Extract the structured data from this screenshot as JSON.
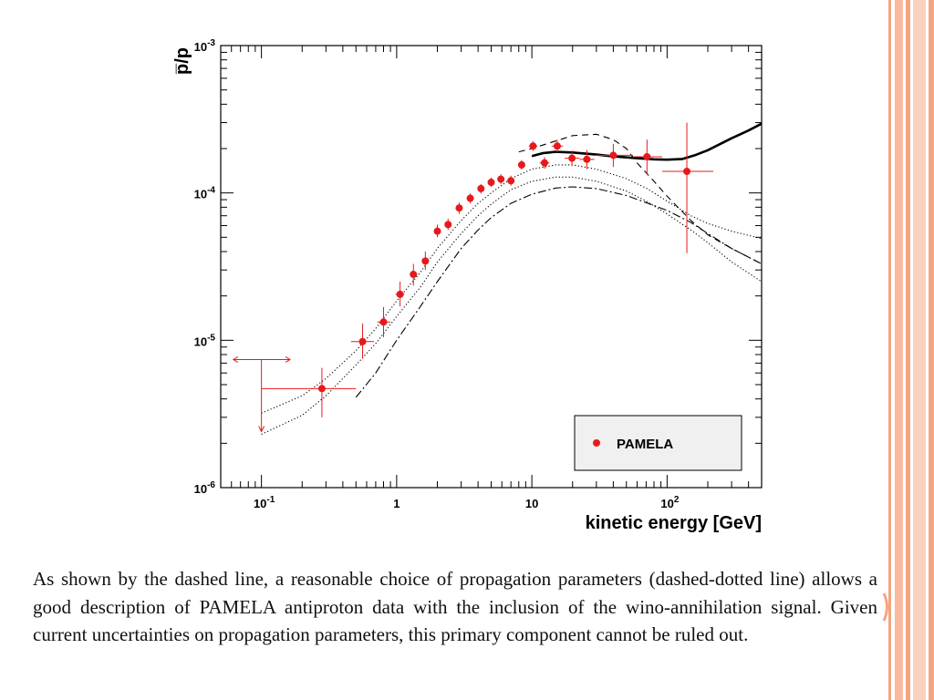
{
  "slide": {
    "caption": "As shown by the dashed line, a reasonable choice of propagation parameters (dashed-dotted line) allows a good description of PAMELA antiproton data with the inclusion of the wino-annihilation signal. Given current uncertainties on propagation parameters, this primary component cannot be ruled out.",
    "accent_color": "#F4A582",
    "decoration_icon": "orange-bracket-icon"
  },
  "chart_data": {
    "type": "scatter",
    "xlabel": "kinetic energy [GeV]",
    "ylabel": "p̅/p",
    "xscale": "log",
    "yscale": "log",
    "xlim": [
      0.05,
      500
    ],
    "ylim": [
      1e-06,
      0.001
    ],
    "x_tick_labels": [
      {
        "value": 0.1,
        "base": "10",
        "exp": "-1"
      },
      {
        "value": 1,
        "base": "1",
        "exp": ""
      },
      {
        "value": 10,
        "base": "10",
        "exp": ""
      },
      {
        "value": 100,
        "base": "10",
        "exp": "2"
      }
    ],
    "y_tick_labels": [
      {
        "value": 1e-06,
        "base": "10",
        "exp": "-6"
      },
      {
        "value": 1e-05,
        "base": "10",
        "exp": "-5"
      },
      {
        "value": 0.0001,
        "base": "10",
        "exp": "-4"
      },
      {
        "value": 0.001,
        "base": "10",
        "exp": "-3"
      }
    ],
    "legend": {
      "placement": "bottom-right",
      "entries": [
        {
          "label": "PAMELA",
          "color": "#e8191b"
        }
      ]
    },
    "upper_limit": {
      "x": 0.1,
      "y": 7.4e-06,
      "y_low": 2.4e-06,
      "x_low": 0.062,
      "x_high": 0.163,
      "color": "#e8191b"
    },
    "series": [
      {
        "name": "PAMELA",
        "style": "points",
        "color": "#e8191b",
        "points": [
          {
            "x": 0.28,
            "y": 4.7e-06,
            "ylo": 3e-06,
            "yhi": 6.5e-06,
            "xlo": 0.1,
            "xhi": 0.5
          },
          {
            "x": 0.56,
            "y": 9.8e-06,
            "ylo": 7.5e-06,
            "yhi": 1.3e-05,
            "xlo": 0.46,
            "xhi": 0.68
          },
          {
            "x": 0.8,
            "y": 1.33e-05,
            "ylo": 1.05e-05,
            "yhi": 1.68e-05,
            "xlo": 0.72,
            "xhi": 0.9
          },
          {
            "x": 1.06,
            "y": 2.05e-05,
            "ylo": 1.7e-05,
            "yhi": 2.5e-05,
            "xlo": 0.98,
            "xhi": 1.14
          },
          {
            "x": 1.33,
            "y": 2.8e-05,
            "ylo": 2.35e-05,
            "yhi": 3.3e-05,
            "xlo": 1.25,
            "xhi": 1.42
          },
          {
            "x": 1.63,
            "y": 3.45e-05,
            "ylo": 3e-05,
            "yhi": 4e-05,
            "xlo": 1.55,
            "xhi": 1.72
          },
          {
            "x": 2.0,
            "y": 5.5e-05,
            "ylo": 5e-05,
            "yhi": 6.1e-05,
            "xlo": 1.9,
            "xhi": 2.1
          },
          {
            "x": 2.4,
            "y": 6.1e-05,
            "ylo": 5.6e-05,
            "yhi": 6.7e-05,
            "xlo": 2.3,
            "xhi": 2.5
          },
          {
            "x": 2.9,
            "y": 7.9e-05,
            "ylo": 7.2e-05,
            "yhi": 8.6e-05,
            "xlo": 2.75,
            "xhi": 3.05
          },
          {
            "x": 3.5,
            "y": 9.2e-05,
            "ylo": 8.5e-05,
            "yhi": 9.9e-05,
            "xlo": 3.3,
            "xhi": 3.7
          },
          {
            "x": 4.2,
            "y": 0.000107,
            "ylo": 9.9e-05,
            "yhi": 0.000115,
            "xlo": 4.0,
            "xhi": 4.4
          },
          {
            "x": 5.0,
            "y": 0.000118,
            "ylo": 0.00011,
            "yhi": 0.000127,
            "xlo": 4.7,
            "xhi": 5.3
          },
          {
            "x": 5.9,
            "y": 0.000124,
            "ylo": 0.000115,
            "yhi": 0.000134,
            "xlo": 5.6,
            "xhi": 6.2
          },
          {
            "x": 7.0,
            "y": 0.000121,
            "ylo": 0.000112,
            "yhi": 0.000131,
            "xlo": 6.6,
            "xhi": 7.4
          },
          {
            "x": 8.4,
            "y": 0.000155,
            "ylo": 0.000144,
            "yhi": 0.000167,
            "xlo": 7.9,
            "xhi": 8.9
          },
          {
            "x": 10.2,
            "y": 0.000208,
            "ylo": 0.000193,
            "yhi": 0.000224,
            "xlo": 9.5,
            "xhi": 11.0
          },
          {
            "x": 12.4,
            "y": 0.00016,
            "ylo": 0.000146,
            "yhi": 0.000175,
            "xlo": 11.4,
            "xhi": 13.5
          },
          {
            "x": 15.4,
            "y": 0.000208,
            "ylo": 0.000188,
            "yhi": 0.00023,
            "xlo": 14.0,
            "xhi": 17.0
          },
          {
            "x": 19.8,
            "y": 0.000172,
            "ylo": 0.000152,
            "yhi": 0.000194,
            "xlo": 17.5,
            "xhi": 22.5
          },
          {
            "x": 25.5,
            "y": 0.000169,
            "ylo": 0.000145,
            "yhi": 0.000196,
            "xlo": 22.5,
            "xhi": 29.0
          },
          {
            "x": 40.0,
            "y": 0.00018,
            "ylo": 0.00015,
            "yhi": 0.000215,
            "xlo": 29.0,
            "xhi": 56.0
          },
          {
            "x": 71.0,
            "y": 0.000176,
            "ylo": 0.000135,
            "yhi": 0.00023,
            "xlo": 56.0,
            "xhi": 92.0
          },
          {
            "x": 140.0,
            "y": 0.00014,
            "ylo": 3.9e-05,
            "yhi": 0.0003,
            "xlo": 92.0,
            "xhi": 220.0
          }
        ]
      },
      {
        "style": "solid-thick",
        "color": "#000000",
        "points": [
          [
            10,
            0.000178
          ],
          [
            12,
            0.000186
          ],
          [
            15,
            0.00019
          ],
          [
            20,
            0.000188
          ],
          [
            30,
            0.000182
          ],
          [
            40,
            0.000177
          ],
          [
            60,
            0.000172
          ],
          [
            80,
            0.000169
          ],
          [
            100,
            0.000168
          ],
          [
            130,
            0.00017
          ],
          [
            160,
            0.00018
          ],
          [
            200,
            0.000195
          ],
          [
            300,
            0.000235
          ],
          [
            400,
            0.000265
          ],
          [
            500,
            0.000295
          ]
        ]
      },
      {
        "style": "dashed",
        "color": "#000000",
        "points": [
          [
            8,
            0.00019
          ],
          [
            10,
            0.0002
          ],
          [
            15,
            0.000225
          ],
          [
            20,
            0.000245
          ],
          [
            30,
            0.00025
          ],
          [
            40,
            0.00023
          ],
          [
            50,
            0.0002
          ],
          [
            60,
            0.00016
          ],
          [
            80,
            0.00012
          ],
          [
            100,
            9.5e-05
          ],
          [
            150,
            6.5e-05
          ],
          [
            200,
            5.2e-05
          ],
          [
            300,
            4.2e-05
          ],
          [
            500,
            3.3e-05
          ]
        ]
      },
      {
        "style": "dash-dot",
        "color": "#000000",
        "points": [
          [
            0.5,
            4.1e-06
          ],
          [
            0.7,
            6e-06
          ],
          [
            1,
            1e-05
          ],
          [
            1.5,
            1.7e-05
          ],
          [
            2,
            2.5e-05
          ],
          [
            3,
            4.2e-05
          ],
          [
            4,
            5.6e-05
          ],
          [
            5,
            6.8e-05
          ],
          [
            7,
            8.5e-05
          ],
          [
            10,
            9.8e-05
          ],
          [
            15,
            0.000108
          ],
          [
            20,
            0.00011
          ],
          [
            30,
            0.000107
          ],
          [
            50,
            9.6e-05
          ],
          [
            70,
            8.6e-05
          ],
          [
            100,
            7.6e-05
          ],
          [
            150,
            6.3e-05
          ],
          [
            200,
            5.3e-05
          ],
          [
            300,
            4.2e-05
          ],
          [
            500,
            3.3e-05
          ]
        ]
      },
      {
        "style": "dotted",
        "color": "#000000",
        "points": [
          [
            0.1,
            3.2e-06
          ],
          [
            0.2,
            4.2e-06
          ],
          [
            0.3,
            5.5e-06
          ],
          [
            0.5,
            8.5e-06
          ],
          [
            0.7,
            1.2e-05
          ],
          [
            1,
            1.85e-05
          ],
          [
            1.5,
            2.9e-05
          ],
          [
            2,
            4.2e-05
          ],
          [
            3,
            6.5e-05
          ],
          [
            4,
            8.5e-05
          ],
          [
            5,
            0.0001
          ],
          [
            7,
            0.000125
          ],
          [
            10,
            0.000145
          ],
          [
            15,
            0.000155
          ],
          [
            20,
            0.000155
          ],
          [
            30,
            0.000145
          ],
          [
            50,
            0.000125
          ],
          [
            70,
            0.000108
          ],
          [
            100,
            8.8e-05
          ],
          [
            150,
            7e-05
          ],
          [
            200,
            6.2e-05
          ],
          [
            300,
            5.5e-05
          ],
          [
            500,
            4.9e-05
          ]
        ]
      },
      {
        "style": "dotted",
        "color": "#000000",
        "points": [
          [
            0.1,
            2.3e-06
          ],
          [
            0.2,
            3.1e-06
          ],
          [
            0.3,
            4.2e-06
          ],
          [
            0.5,
            6.8e-06
          ],
          [
            0.7,
            9.5e-06
          ],
          [
            1,
            1.45e-05
          ],
          [
            1.5,
            2.3e-05
          ],
          [
            2,
            3.4e-05
          ],
          [
            3,
            5.3e-05
          ],
          [
            4,
            7e-05
          ],
          [
            5,
            8.4e-05
          ],
          [
            7,
            0.000105
          ],
          [
            10,
            0.00012
          ],
          [
            15,
            0.000128
          ],
          [
            20,
            0.000128
          ],
          [
            30,
            0.00012
          ],
          [
            50,
            0.000103
          ],
          [
            70,
            8.8e-05
          ],
          [
            100,
            7.2e-05
          ],
          [
            150,
            5.6e-05
          ],
          [
            200,
            4.6e-05
          ],
          [
            300,
            3.4e-05
          ],
          [
            500,
            2.5e-05
          ]
        ]
      }
    ]
  }
}
